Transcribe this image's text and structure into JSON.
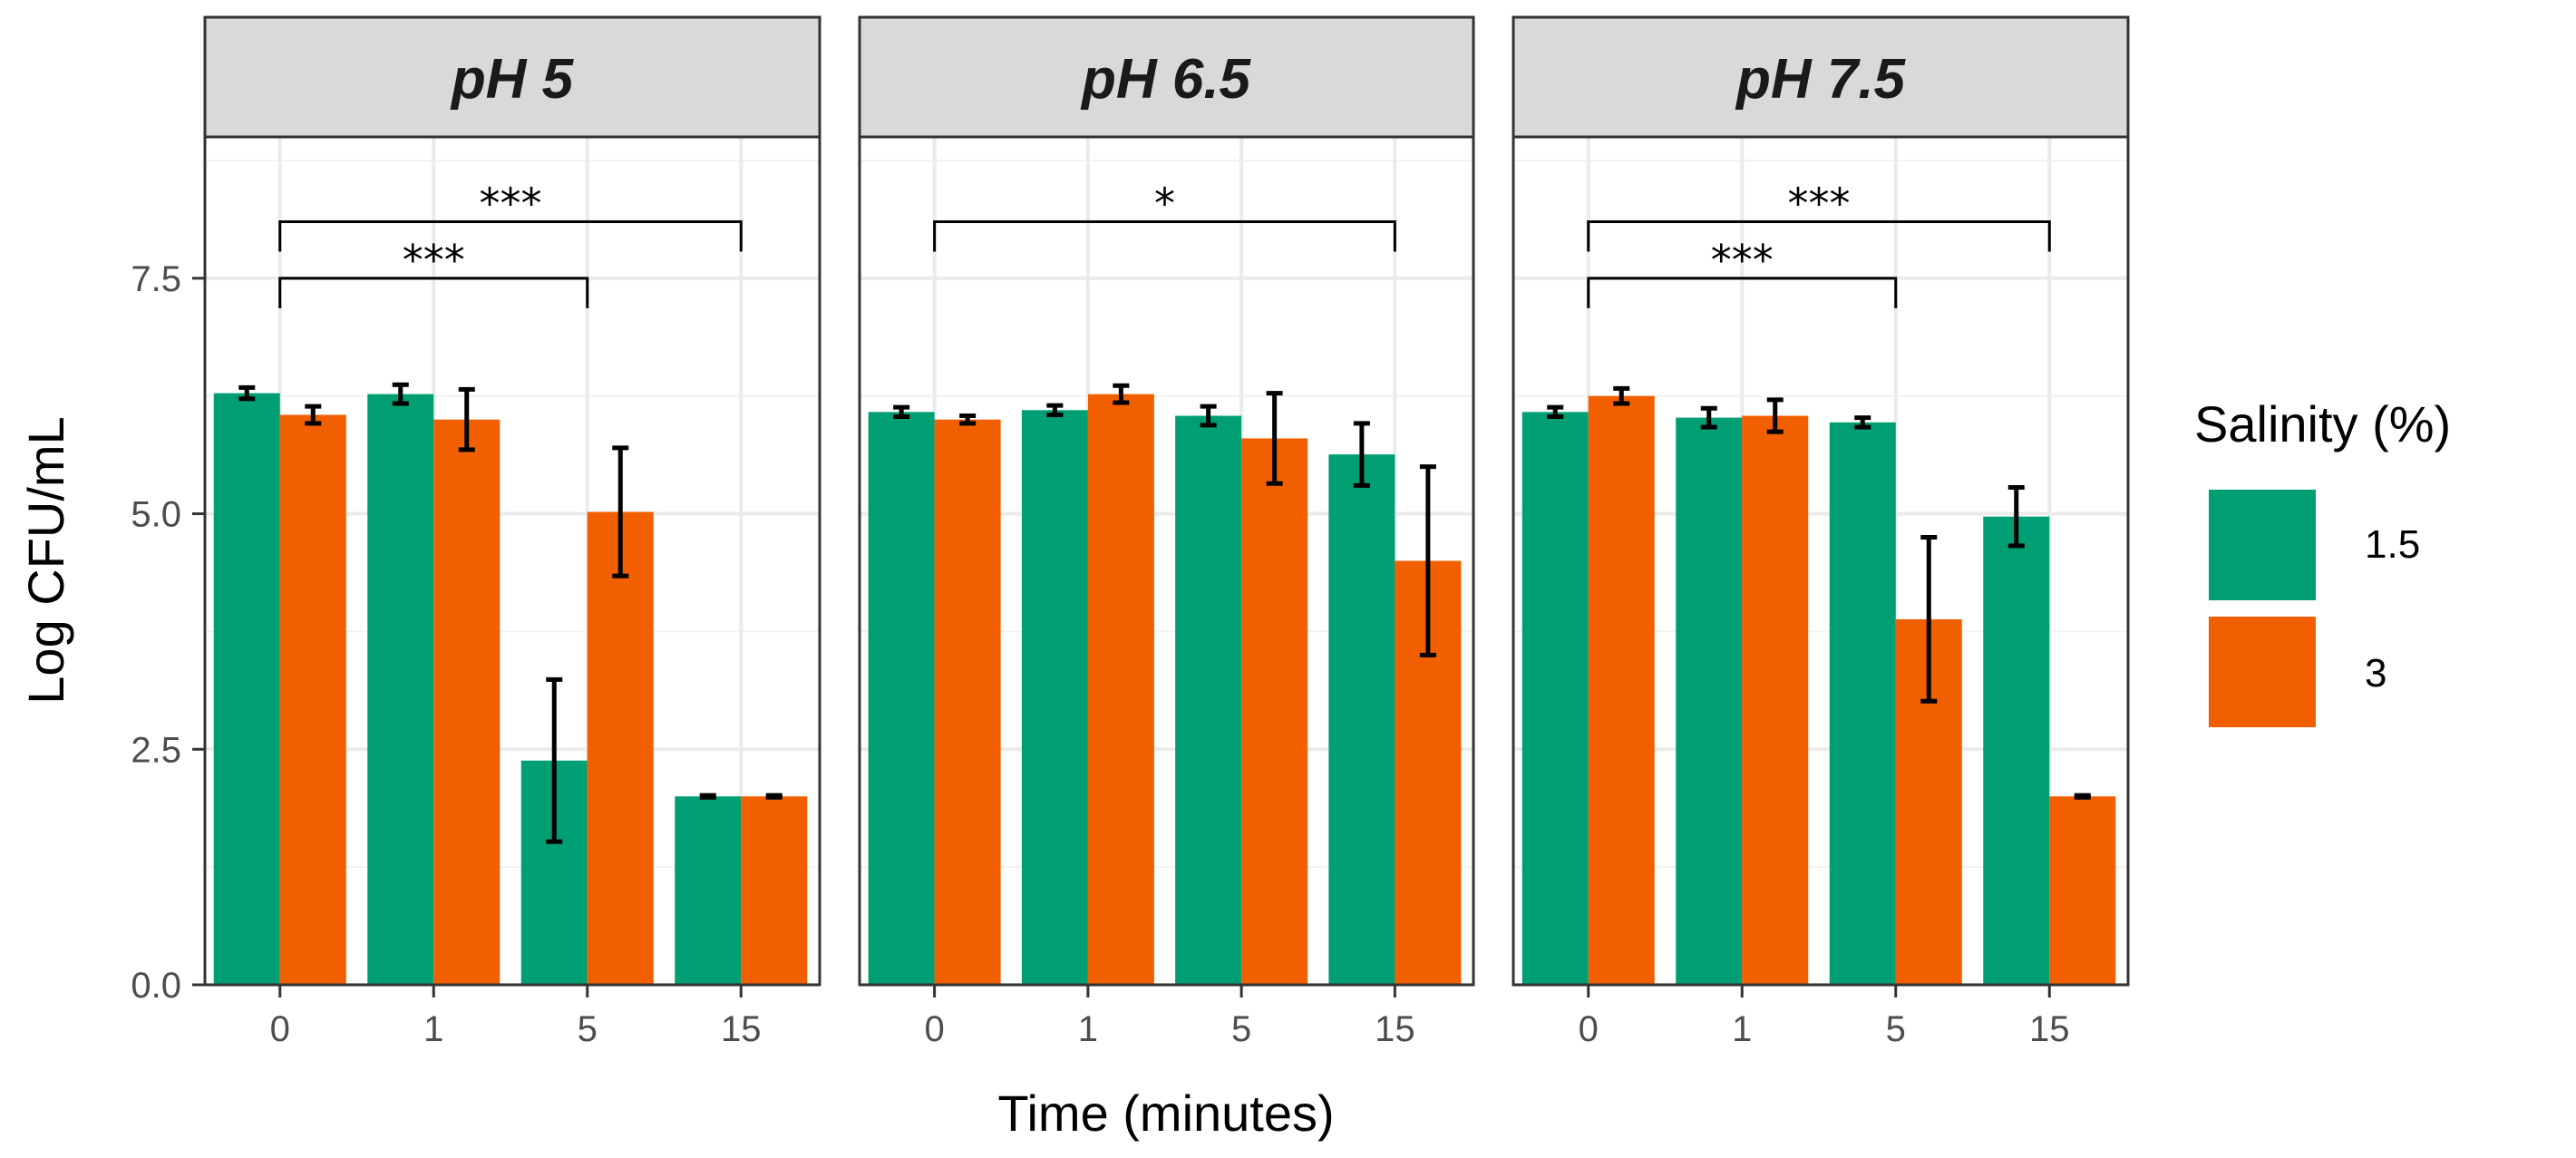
{
  "chart_data": {
    "type": "bar",
    "facets": [
      "pH 5",
      "pH 6.5",
      "pH 7.5"
    ],
    "categories": [
      "0",
      "1",
      "5",
      "15"
    ],
    "xlabel": "Time (minutes)",
    "ylabel": "Log CFU/mL",
    "ylim": [
      0,
      9.0
    ],
    "yticks": [
      0.0,
      2.5,
      5.0,
      7.5
    ],
    "ytick_labels": [
      "0.0",
      "2.5",
      "5.0",
      "7.5"
    ],
    "grid": true,
    "legend": {
      "title": "Salinity (%)",
      "position": "right",
      "entries": [
        "1.5",
        "3"
      ]
    },
    "colors": {
      "1.5": "#009E73",
      "3": "#F25F00"
    },
    "series": [
      {
        "name": "1.5",
        "panels": [
          {
            "values": [
              6.28,
              6.27,
              2.38,
              2.0
            ],
            "errors": [
              0.06,
              0.1,
              0.86,
              0.01
            ]
          },
          {
            "values": [
              6.08,
              6.1,
              6.04,
              5.63
            ],
            "errors": [
              0.05,
              0.05,
              0.1,
              0.33
            ]
          },
          {
            "values": [
              6.08,
              6.02,
              5.97,
              4.97
            ],
            "errors": [
              0.05,
              0.1,
              0.05,
              0.31
            ]
          }
        ]
      },
      {
        "name": "3",
        "panels": [
          {
            "values": [
              6.05,
              6.0,
              5.02,
              2.0
            ],
            "errors": [
              0.09,
              0.32,
              0.68,
              0.01
            ]
          },
          {
            "values": [
              6.0,
              6.27,
              5.8,
              4.5
            ],
            "errors": [
              0.04,
              0.09,
              0.48,
              1.0
            ]
          },
          {
            "values": [
              6.25,
              6.04,
              3.88,
              2.0
            ],
            "errors": [
              0.08,
              0.17,
              0.87,
              0.01
            ]
          }
        ]
      }
    ],
    "significance": [
      [
        {
          "from": "0",
          "to": "15",
          "label": "***",
          "y": 8.1
        },
        {
          "from": "0",
          "to": "5",
          "label": "***",
          "y": 7.5
        }
      ],
      [
        {
          "from": "0",
          "to": "15",
          "label": "*",
          "y": 8.1
        }
      ],
      [
        {
          "from": "0",
          "to": "15",
          "label": "***",
          "y": 8.1
        },
        {
          "from": "0",
          "to": "5",
          "label": "***",
          "y": 7.5
        }
      ]
    ]
  }
}
